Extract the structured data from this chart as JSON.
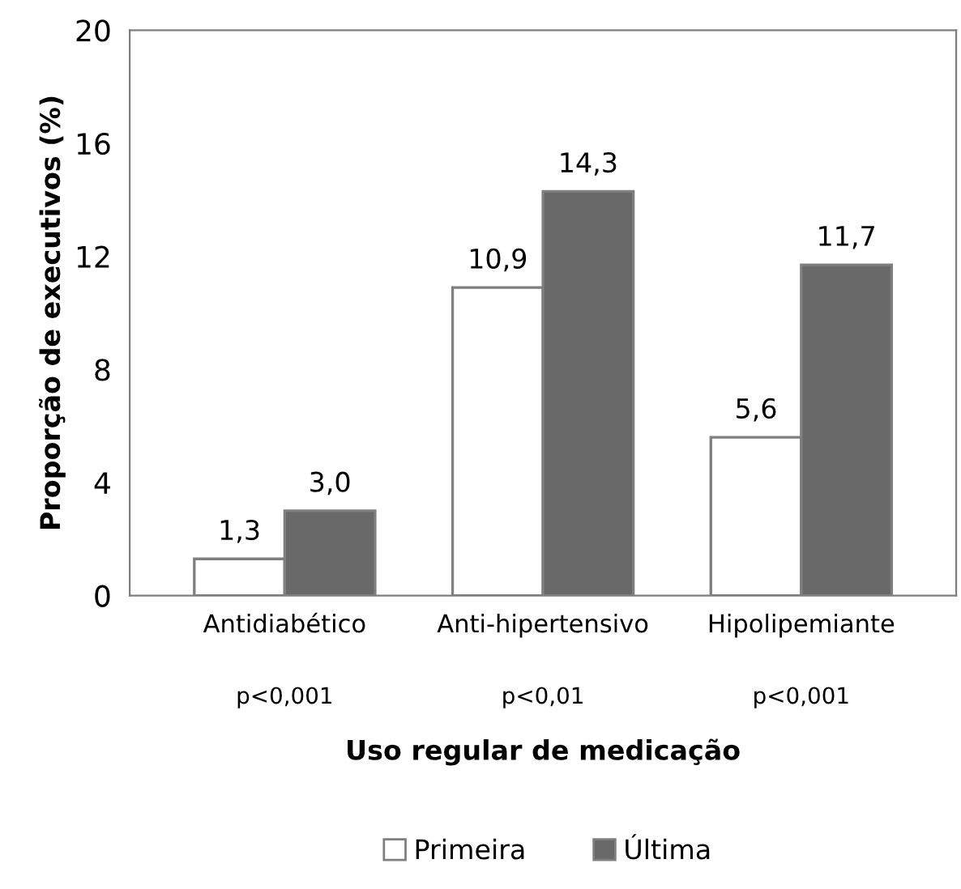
{
  "chart_data": {
    "type": "bar",
    "xlabel": "Uso regular de medicação",
    "ylabel": "Proporção de executivos (%)",
    "categories": [
      "Antidiabético",
      "Anti-hipertensivo",
      "Hipolipemiante"
    ],
    "series": [
      {
        "name": "Primeira",
        "color": "#ffffff",
        "values": [
          1.3,
          10.9,
          5.6
        ],
        "value_labels": [
          "1,3",
          "10,9",
          "5,6"
        ]
      },
      {
        "name": "Última",
        "color": "#696969",
        "values": [
          3.0,
          14.3,
          11.7
        ],
        "value_labels": [
          "3,0",
          "14,3",
          "11,7"
        ]
      }
    ],
    "annotations": [
      "p<0,001",
      "p<0,01",
      "p<0,001"
    ],
    "ylim": [
      0,
      20
    ],
    "yticks": [
      0,
      4,
      8,
      12,
      16,
      20
    ],
    "grid": false,
    "legend": "bottom"
  }
}
